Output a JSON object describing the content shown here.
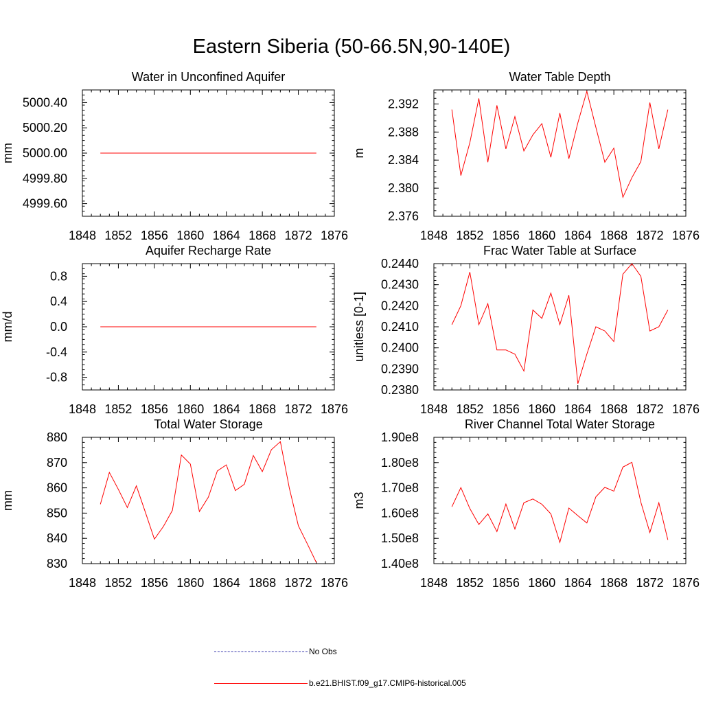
{
  "title": "Eastern Siberia (50-66.5N,90-140E)",
  "colors": {
    "series": "#ff0000",
    "obs": "#3333aa",
    "axis": "#000000"
  },
  "legend": [
    {
      "label": "No Obs",
      "style": "dashed",
      "color": "#3333aa"
    },
    {
      "label": "b.e21.BHIST.f09_g17.CMIP6-historical.005",
      "style": "solid",
      "color": "#ff0000"
    }
  ],
  "chart_data": [
    {
      "type": "line",
      "title": "Water in Unconfined Aquifer",
      "ylabel": "mm",
      "xlim": [
        1848,
        1876
      ],
      "x_ticks": [
        1848,
        1852,
        1856,
        1860,
        1864,
        1868,
        1872,
        1876
      ],
      "ylim": [
        4999.5,
        5000.5
      ],
      "y_ticks": [
        4999.6,
        4999.8,
        5000.0,
        5000.2,
        5000.4
      ],
      "y_tick_labels": [
        "4999.60",
        "4999.80",
        "5000.00",
        "5000.20",
        "5000.40"
      ],
      "x": [
        1850,
        1851,
        1852,
        1853,
        1854,
        1855,
        1856,
        1857,
        1858,
        1859,
        1860,
        1861,
        1862,
        1863,
        1864,
        1865,
        1866,
        1867,
        1868,
        1869,
        1870,
        1871,
        1872,
        1873,
        1874
      ],
      "series": [
        {
          "name": "b.e21.BHIST.f09_g17.CMIP6-historical.005",
          "values": [
            5000.0,
            5000.0,
            5000.0,
            5000.0,
            5000.0,
            5000.0,
            5000.0,
            5000.0,
            5000.0,
            5000.0,
            5000.0,
            5000.0,
            5000.0,
            5000.0,
            5000.0,
            5000.0,
            5000.0,
            5000.0,
            5000.0,
            5000.0,
            5000.0,
            5000.0,
            5000.0,
            5000.0,
            5000.0
          ]
        }
      ]
    },
    {
      "type": "line",
      "title": "Water Table Depth",
      "ylabel": "m",
      "xlim": [
        1848,
        1876
      ],
      "x_ticks": [
        1848,
        1852,
        1856,
        1860,
        1864,
        1868,
        1872,
        1876
      ],
      "ylim": [
        2.376,
        2.394
      ],
      "y_ticks": [
        2.376,
        2.38,
        2.384,
        2.388,
        2.392
      ],
      "y_tick_labels": [
        "2.376",
        "2.380",
        "2.384",
        "2.388",
        "2.392"
      ],
      "x": [
        1850,
        1851,
        1852,
        1853,
        1854,
        1855,
        1856,
        1857,
        1858,
        1859,
        1860,
        1861,
        1862,
        1863,
        1864,
        1865,
        1866,
        1867,
        1868,
        1869,
        1870,
        1871,
        1872,
        1873,
        1874
      ],
      "series": [
        {
          "name": "b.e21.BHIST.f09_g17.CMIP6-historical.005",
          "values": [
            2.3912,
            2.3818,
            2.3865,
            2.3928,
            2.3837,
            2.3918,
            2.3856,
            2.3902,
            2.3853,
            2.3876,
            2.3892,
            2.3844,
            2.3907,
            2.3842,
            2.3893,
            2.3938,
            2.3887,
            2.3837,
            2.3857,
            2.3787,
            2.3815,
            2.3838,
            2.3922,
            2.3856,
            2.3912
          ]
        }
      ]
    },
    {
      "type": "line",
      "title": "Aquifer Recharge Rate",
      "ylabel": "mm/d",
      "xlim": [
        1848,
        1876
      ],
      "x_ticks": [
        1848,
        1852,
        1856,
        1860,
        1864,
        1868,
        1872,
        1876
      ],
      "ylim": [
        -1.0,
        1.0
      ],
      "y_ticks": [
        -0.8,
        -0.4,
        0.0,
        0.4,
        0.8
      ],
      "y_tick_labels": [
        "-0.8",
        "-0.4",
        "0.0",
        "0.4",
        "0.8"
      ],
      "x": [
        1850,
        1851,
        1852,
        1853,
        1854,
        1855,
        1856,
        1857,
        1858,
        1859,
        1860,
        1861,
        1862,
        1863,
        1864,
        1865,
        1866,
        1867,
        1868,
        1869,
        1870,
        1871,
        1872,
        1873,
        1874
      ],
      "series": [
        {
          "name": "b.e21.BHIST.f09_g17.CMIP6-historical.005",
          "values": [
            0.0,
            0.0,
            0.0,
            0.0,
            0.0,
            0.0,
            0.0,
            0.0,
            0.0,
            0.0,
            0.0,
            0.0,
            0.0,
            0.0,
            0.0,
            0.0,
            0.0,
            0.0,
            0.0,
            0.0,
            0.0,
            0.0,
            0.0,
            0.0,
            0.0
          ]
        }
      ]
    },
    {
      "type": "line",
      "title": "Frac Water Table at Surface",
      "ylabel": "unitless [0-1]",
      "xlim": [
        1848,
        1876
      ],
      "x_ticks": [
        1848,
        1852,
        1856,
        1860,
        1864,
        1868,
        1872,
        1876
      ],
      "ylim": [
        0.238,
        0.244
      ],
      "y_ticks": [
        0.238,
        0.239,
        0.24,
        0.241,
        0.242,
        0.243,
        0.244
      ],
      "y_tick_labels": [
        "0.2380",
        "0.2390",
        "0.2400",
        "0.2410",
        "0.2420",
        "0.2430",
        "0.2440"
      ],
      "x": [
        1850,
        1851,
        1852,
        1853,
        1854,
        1855,
        1856,
        1857,
        1858,
        1859,
        1860,
        1861,
        1862,
        1863,
        1864,
        1865,
        1866,
        1867,
        1868,
        1869,
        1870,
        1871,
        1872,
        1873,
        1874
      ],
      "series": [
        {
          "name": "b.e21.BHIST.f09_g17.CMIP6-historical.005",
          "values": [
            0.2411,
            0.242,
            0.2436,
            0.2411,
            0.2421,
            0.2399,
            0.2399,
            0.2397,
            0.2389,
            0.2418,
            0.2414,
            0.2426,
            0.2411,
            0.2425,
            0.2383,
            0.2397,
            0.241,
            0.2408,
            0.2403,
            0.2435,
            0.244,
            0.2434,
            0.2408,
            0.241,
            0.2418
          ]
        }
      ]
    },
    {
      "type": "line",
      "title": "Total Water Storage",
      "ylabel": "mm",
      "xlim": [
        1848,
        1876
      ],
      "x_ticks": [
        1848,
        1852,
        1856,
        1860,
        1864,
        1868,
        1872,
        1876
      ],
      "ylim": [
        830,
        880
      ],
      "y_ticks": [
        830,
        840,
        850,
        860,
        870,
        880
      ],
      "y_tick_labels": [
        "830",
        "840",
        "850",
        "860",
        "870",
        "880"
      ],
      "x": [
        1850,
        1851,
        1852,
        1853,
        1854,
        1855,
        1856,
        1857,
        1858,
        1859,
        1860,
        1861,
        1862,
        1863,
        1864,
        1865,
        1866,
        1867,
        1868,
        1869,
        1870,
        1871,
        1872,
        1873,
        1874
      ],
      "series": [
        {
          "name": "b.e21.BHIST.f09_g17.CMIP6-historical.005",
          "values": [
            853.5,
            866.1,
            859.4,
            852.2,
            860.8,
            850.3,
            839.7,
            844.7,
            851.1,
            873.0,
            869.4,
            850.6,
            856.3,
            866.7,
            869.1,
            858.9,
            861.4,
            872.8,
            866.4,
            875.1,
            878.3,
            859.8,
            845.0,
            837.8,
            830.4
          ]
        }
      ]
    },
    {
      "type": "line",
      "title": "River Channel Total Water Storage",
      "ylabel": "m3",
      "xlim": [
        1848,
        1876
      ],
      "x_ticks": [
        1848,
        1852,
        1856,
        1860,
        1864,
        1868,
        1872,
        1876
      ],
      "ylim": [
        140000000,
        190000000
      ],
      "y_ticks": [
        140000000,
        150000000,
        160000000,
        170000000,
        180000000,
        190000000
      ],
      "y_tick_labels": [
        "1.40e8",
        "1.50e8",
        "1.60e8",
        "1.70e8",
        "1.80e8",
        "1.90e8"
      ],
      "x": [
        1850,
        1851,
        1852,
        1853,
        1854,
        1855,
        1856,
        1857,
        1858,
        1859,
        1860,
        1861,
        1862,
        1863,
        1864,
        1865,
        1866,
        1867,
        1868,
        1869,
        1870,
        1871,
        1872,
        1873,
        1874
      ],
      "series": [
        {
          "name": "b.e21.BHIST.f09_g17.CMIP6-historical.005",
          "values": [
            162500000,
            170100000,
            161800000,
            155500000,
            159700000,
            152700000,
            163600000,
            153700000,
            164100000,
            165600000,
            163500000,
            159700000,
            148400000,
            162000000,
            159000000,
            156100000,
            166400000,
            170200000,
            168700000,
            178200000,
            180100000,
            164300000,
            152300000,
            164100000,
            149400000
          ]
        }
      ]
    }
  ]
}
